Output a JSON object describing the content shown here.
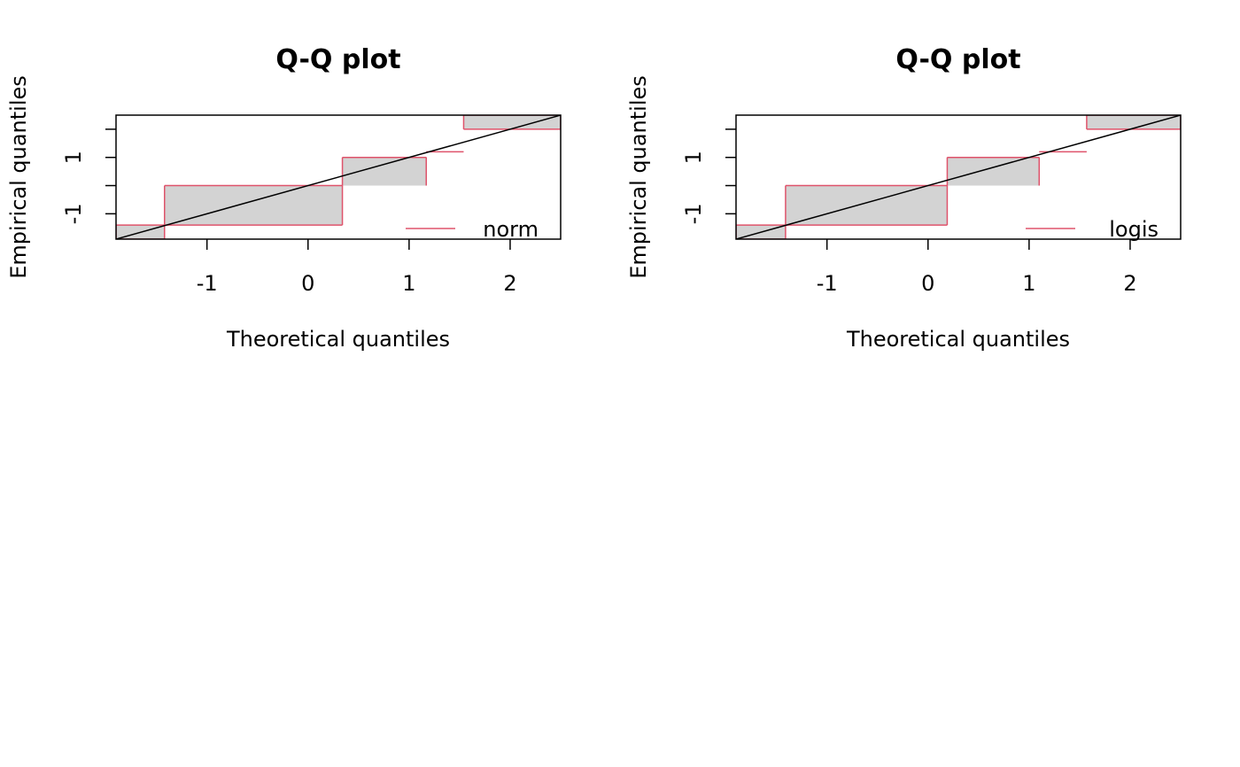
{
  "chart_data": [
    {
      "type": "line",
      "title": "Q-Q plot",
      "xlabel": "Theoretical quantiles",
      "ylabel": "Empirical quantiles",
      "xlim": [
        -1.9,
        2.5
      ],
      "ylim": [
        -1.9,
        2.5
      ],
      "xticks": [
        -1,
        0,
        1,
        2
      ],
      "xtick_labels": [
        "-1",
        "0",
        "1",
        "2"
      ],
      "yticks": [
        -1,
        0,
        1,
        2
      ],
      "ytick_labels": [
        "-1",
        "1"
      ],
      "ytick_labeled_values": [
        -1,
        1
      ],
      "grid": false,
      "legend_position": "bottom-right",
      "series": [
        {
          "name": "norm",
          "color": "#DF536B",
          "steps": [
            {
              "x0": -1.9,
              "x1": -1.42,
              "y": -1.4
            },
            {
              "x0": -1.42,
              "x1": 0.34,
              "y": -1.4
            },
            {
              "x0": 0.34,
              "x1": 1.17,
              "y": 1.0
            },
            {
              "x0": 1.17,
              "x1": 1.54,
              "y": 1.2
            },
            {
              "x0": 1.54,
              "x1": 2.5,
              "y": 2.0
            }
          ],
          "shaded_regions": [
            {
              "x0": -1.9,
              "x1": -1.42,
              "ya": -1.4,
              "yb": -1.9
            },
            {
              "x0": -1.42,
              "x1": 0.34,
              "ya": -1.4,
              "yb": 0.0
            },
            {
              "x0": 0.34,
              "x1": 1.17,
              "ya": 0.0,
              "yb": 1.0
            },
            {
              "x0": 1.54,
              "x1": 2.5,
              "ya": 2.0,
              "yb": 2.5
            }
          ]
        },
        {
          "name": "reference line",
          "color": "#000000",
          "x": [
            -1.9,
            2.5
          ],
          "y": [
            -1.9,
            2.5
          ]
        }
      ]
    },
    {
      "type": "line",
      "title": "Q-Q plot",
      "xlabel": "Theoretical quantiles",
      "ylabel": "Empirical quantiles",
      "xlim": [
        -1.9,
        2.5
      ],
      "ylim": [
        -1.9,
        2.5
      ],
      "xticks": [
        -1,
        0,
        1,
        2
      ],
      "xtick_labels": [
        "-1",
        "0",
        "1",
        "2"
      ],
      "yticks": [
        -1,
        0,
        1,
        2
      ],
      "ytick_labels": [
        "-1",
        "1"
      ],
      "ytick_labeled_values": [
        -1,
        1
      ],
      "grid": false,
      "legend_position": "bottom-right",
      "series": [
        {
          "name": "logis",
          "color": "#DF536B",
          "steps": [
            {
              "x0": -1.9,
              "x1": -1.41,
              "y": -1.4
            },
            {
              "x0": -1.41,
              "x1": 0.19,
              "y": -1.4
            },
            {
              "x0": 0.19,
              "x1": 1.1,
              "y": 1.0
            },
            {
              "x0": 1.1,
              "x1": 1.57,
              "y": 1.2
            },
            {
              "x0": 1.57,
              "x1": 2.5,
              "y": 2.0
            }
          ],
          "shaded_regions": [
            {
              "x0": -1.9,
              "x1": -1.41,
              "ya": -1.4,
              "yb": -1.9
            },
            {
              "x0": -1.41,
              "x1": 0.19,
              "ya": -1.4,
              "yb": 0.0
            },
            {
              "x0": 0.19,
              "x1": 1.1,
              "ya": 0.0,
              "yb": 1.0
            },
            {
              "x0": 1.57,
              "x1": 2.5,
              "ya": 2.0,
              "yb": 2.5
            }
          ]
        },
        {
          "name": "reference line",
          "color": "#000000",
          "x": [
            -1.9,
            2.5
          ],
          "y": [
            -1.9,
            2.5
          ]
        }
      ]
    }
  ],
  "colors": {
    "fill": "#D3D3D3",
    "step": "#DF536B",
    "axis": "#000000"
  }
}
